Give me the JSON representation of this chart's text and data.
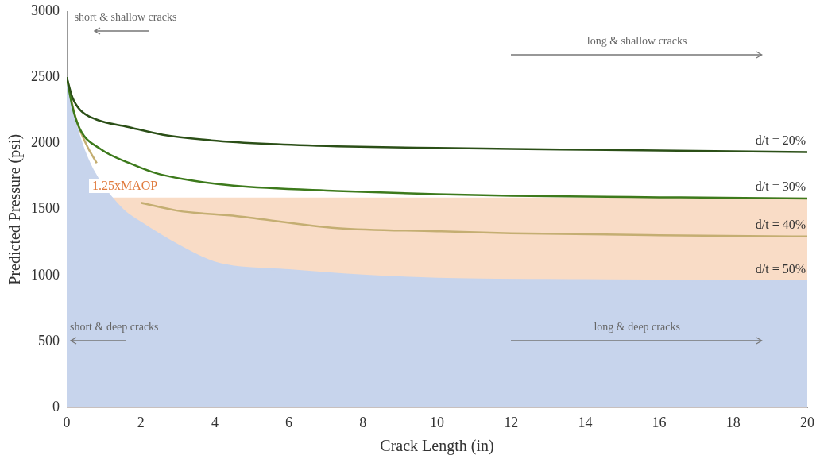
{
  "chart_data": {
    "type": "line",
    "xlabel": "Crack Length (in)",
    "ylabel": "Predicted Pressure (psi)",
    "xlim": [
      0,
      20
    ],
    "xticks": [
      0,
      2,
      4,
      6,
      8,
      10,
      12,
      14,
      16,
      18,
      20
    ],
    "ylim": [
      0,
      3000
    ],
    "yticks": [
      0,
      500,
      1000,
      1500,
      2000,
      2500,
      3000
    ],
    "series": [
      {
        "name": "d/t = 20%",
        "color": "#2b4f17",
        "x": [
          0,
          0.15,
          0.36,
          0.8,
          1.64,
          2.6,
          3.9,
          5.5,
          7.3,
          10,
          12,
          16,
          20
        ],
        "values": [
          2500,
          2350,
          2253,
          2180,
          2125,
          2065,
          2023,
          1995,
          1978,
          1965,
          1958,
          1945,
          1934
        ]
      },
      {
        "name": "d/t = 30%",
        "color": "#3d7a1c",
        "x": [
          0,
          0.15,
          0.36,
          0.9,
          1.8,
          2.4,
          3.15,
          4.5,
          7.3,
          10,
          12,
          16,
          20
        ],
        "values": [
          2500,
          2280,
          2106,
          1959,
          1838,
          1775,
          1729,
          1680,
          1640,
          1615,
          1603,
          1592,
          1583
        ]
      },
      {
        "name": "d/t = 40%",
        "color": "#c4ae72",
        "x": [
          0,
          0.22,
          0.52,
          0.81,
          1.3,
          2,
          3,
          4.6,
          7.3,
          10,
          12,
          16,
          20
        ],
        "values": [
          2500,
          2214,
          1997,
          1850,
          null,
          1551,
          1490,
          1449,
          1359,
          1335,
          1320,
          1305,
          1295
        ]
      },
      {
        "name": "d/t = 50%",
        "type": "area",
        "color": "#c7d4ec",
        "x": [
          0,
          0.15,
          0.4,
          0.7,
          1,
          1.5,
          2,
          3,
          4,
          6,
          8,
          10,
          14,
          20
        ],
        "values": [
          2500,
          2250,
          2000,
          1800,
          null,
          1500,
          1400,
          1230,
          1098,
          1040,
          1000,
          976,
          965,
          957
        ]
      }
    ],
    "bands": [
      {
        "axis": "y",
        "from": 0,
        "to": 1590,
        "label": "1.25xMAOP",
        "color": "#f9dcc6"
      }
    ],
    "annotations": [
      "short & shallow cracks",
      "long & shallow cracks",
      "short & deep cracks",
      "long & deep cracks"
    ],
    "grid": false,
    "legend": false
  }
}
